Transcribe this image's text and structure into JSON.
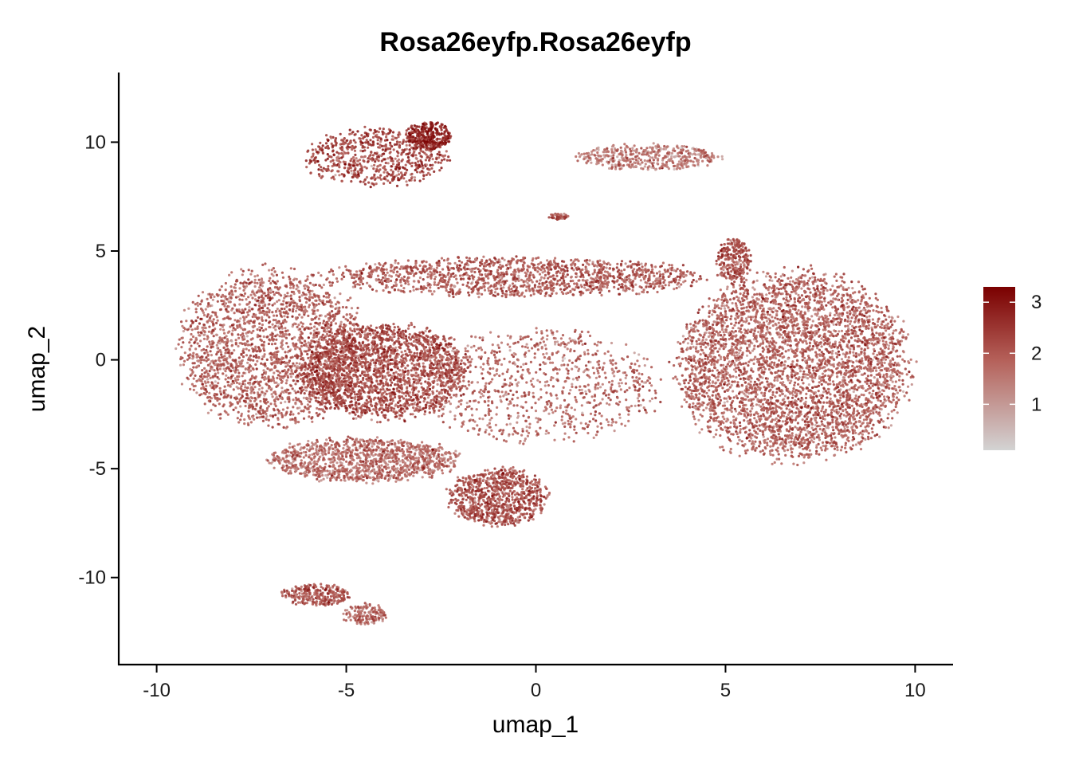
{
  "chart_data": {
    "type": "scatter",
    "title": "Rosa26eyfp.Rosa26eyfp",
    "xlabel": "umap_1",
    "ylabel": "umap_2",
    "xlim": [
      -11,
      11
    ],
    "ylim": [
      -14,
      13.2
    ],
    "xticks": [
      -10,
      -5,
      0,
      5,
      10
    ],
    "yticks": [
      -10,
      -5,
      0,
      5,
      10
    ],
    "xtick_labels": [
      "-10",
      "-5",
      "0",
      "5",
      "10"
    ],
    "ytick_labels": [
      "-10",
      "-5",
      "0",
      "5",
      "10"
    ],
    "grid": false,
    "legend": {
      "placement": "right",
      "title": "",
      "min": 0.1,
      "max": 3.3,
      "ticks": [
        1,
        2,
        3
      ],
      "tick_labels": [
        "1",
        "2",
        "3"
      ],
      "color_low": "#d3d3d3",
      "color_high": "#7a0000"
    },
    "clusters": [
      {
        "name": "top-left island",
        "cx": -4.2,
        "cy": 9.3,
        "rx": 1.9,
        "ry": 1.3,
        "n": 700,
        "mean_expr": 2.4
      },
      {
        "name": "top-left island peak",
        "cx": -2.8,
        "cy": 10.3,
        "rx": 0.6,
        "ry": 0.6,
        "n": 300,
        "mean_expr": 2.9
      },
      {
        "name": "top-right strand",
        "cx": 3.0,
        "cy": 9.3,
        "rx": 1.9,
        "ry": 0.6,
        "n": 450,
        "mean_expr": 1.6
      },
      {
        "name": "small central speck",
        "cx": 0.6,
        "cy": 6.6,
        "rx": 0.25,
        "ry": 0.15,
        "n": 40,
        "mean_expr": 2.2
      },
      {
        "name": "main left lobe",
        "cx": -7.0,
        "cy": 0.5,
        "rx": 2.4,
        "ry": 3.6,
        "n": 2200,
        "mean_expr": 2.0
      },
      {
        "name": "main center-left mass",
        "cx": -4.0,
        "cy": -0.5,
        "rx": 2.2,
        "ry": 2.2,
        "n": 2200,
        "mean_expr": 2.3
      },
      {
        "name": "upper band",
        "cx": -0.5,
        "cy": 3.8,
        "rx": 5.0,
        "ry": 0.9,
        "n": 1400,
        "mean_expr": 2.1
      },
      {
        "name": "center sparse",
        "cx": 0.0,
        "cy": -1.2,
        "rx": 3.2,
        "ry": 2.6,
        "n": 900,
        "mean_expr": 1.9
      },
      {
        "name": "lower trail",
        "cx": -4.5,
        "cy": -4.6,
        "rx": 2.5,
        "ry": 1.0,
        "n": 1200,
        "mean_expr": 1.8
      },
      {
        "name": "bottom center",
        "cx": -1.0,
        "cy": -6.3,
        "rx": 1.3,
        "ry": 1.3,
        "n": 900,
        "mean_expr": 2.2
      },
      {
        "name": "right big mass",
        "cx": 6.8,
        "cy": -0.3,
        "rx": 3.0,
        "ry": 4.3,
        "n": 4200,
        "mean_expr": 2.0
      },
      {
        "name": "right neck",
        "cx": 5.2,
        "cy": 4.6,
        "rx": 0.45,
        "ry": 1.0,
        "n": 260,
        "mean_expr": 2.2
      },
      {
        "name": "bottom-left island",
        "cx": -5.8,
        "cy": -10.8,
        "rx": 0.9,
        "ry": 0.5,
        "n": 280,
        "mean_expr": 2.1
      },
      {
        "name": "bottom-left island tail",
        "cx": -4.5,
        "cy": -11.7,
        "rx": 0.6,
        "ry": 0.5,
        "n": 150,
        "mean_expr": 1.9
      }
    ]
  }
}
